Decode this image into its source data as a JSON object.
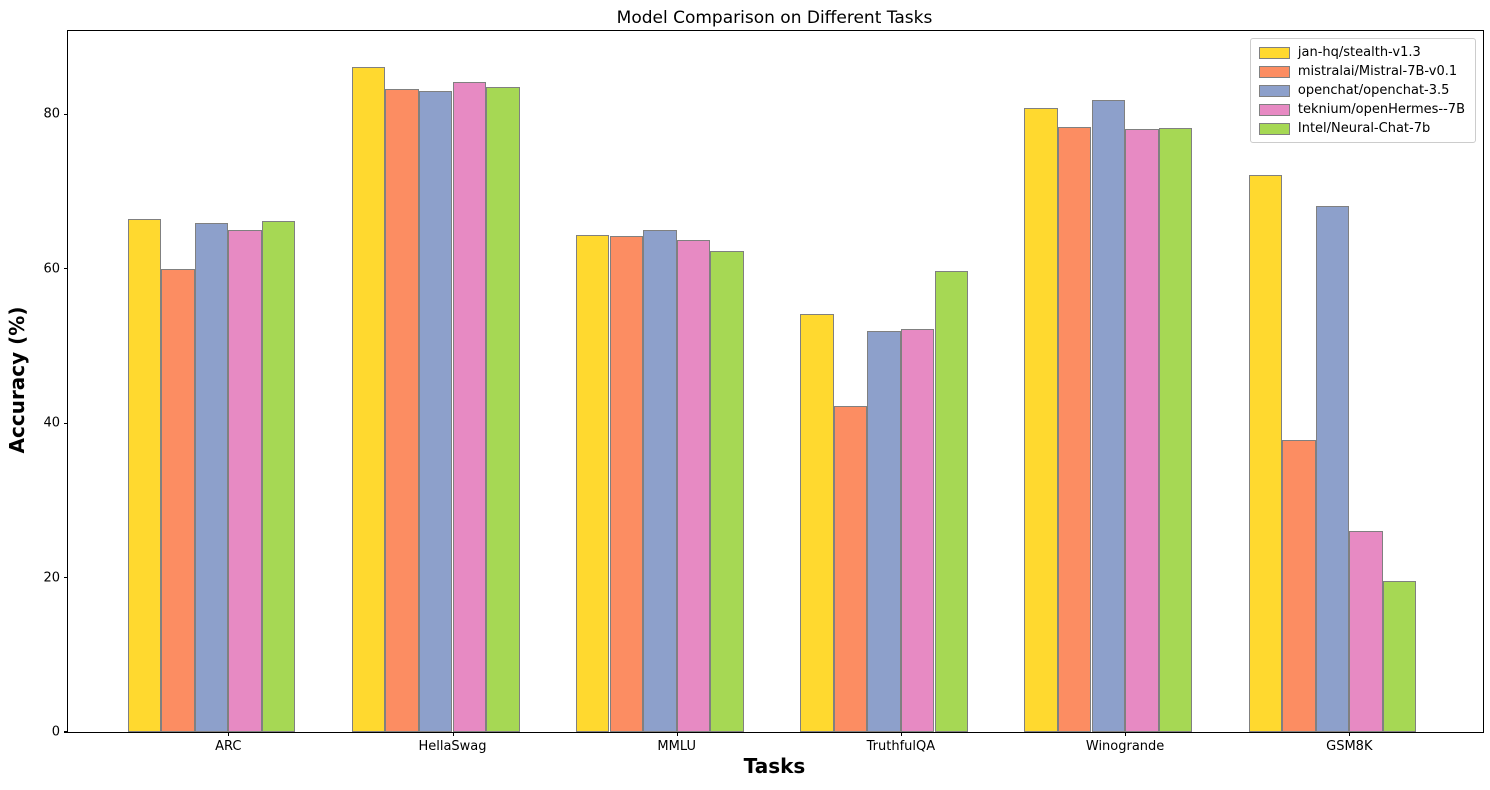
{
  "chart_data": {
    "type": "bar",
    "title": "Model Comparison on Different Tasks",
    "xlabel": "Tasks",
    "ylabel": "Accuracy (%)",
    "categories": [
      "ARC",
      "HellaSwag",
      "MMLU",
      "TruthfulQA",
      "Winogrande",
      "GSM8K"
    ],
    "series": [
      {
        "name": "jan-hq/stealth-v1.3",
        "color": "#FFD92F",
        "values": [
          66.4,
          86.1,
          64.4,
          54.1,
          80.8,
          72.2
        ]
      },
      {
        "name": "mistralai/Mistral-7B-v0.1",
        "color": "#FC8D62",
        "values": [
          60.0,
          83.3,
          64.2,
          42.2,
          78.4,
          37.8
        ]
      },
      {
        "name": "openchat/openchat-3.5",
        "color": "#8DA0CB",
        "values": [
          66.0,
          83.0,
          65.0,
          51.9,
          81.9,
          68.2
        ]
      },
      {
        "name": "teknium/openHermes--7B",
        "color": "#E78AC3",
        "values": [
          65.0,
          84.2,
          63.7,
          52.2,
          78.1,
          26.1
        ]
      },
      {
        "name": "Intel/Neural-Chat-7b",
        "color": "#A6D854",
        "values": [
          66.2,
          83.6,
          62.3,
          59.7,
          78.3,
          19.6
        ]
      }
    ],
    "yticks": [
      0,
      20,
      40,
      60,
      80
    ],
    "ylim": [
      0,
      90.8
    ],
    "grid": false,
    "legend_position": "upper right",
    "bar_edge_color": "#808080",
    "spine_color": "#000000",
    "legend_border_color": "#cccccc",
    "background": "#ffffff"
  }
}
